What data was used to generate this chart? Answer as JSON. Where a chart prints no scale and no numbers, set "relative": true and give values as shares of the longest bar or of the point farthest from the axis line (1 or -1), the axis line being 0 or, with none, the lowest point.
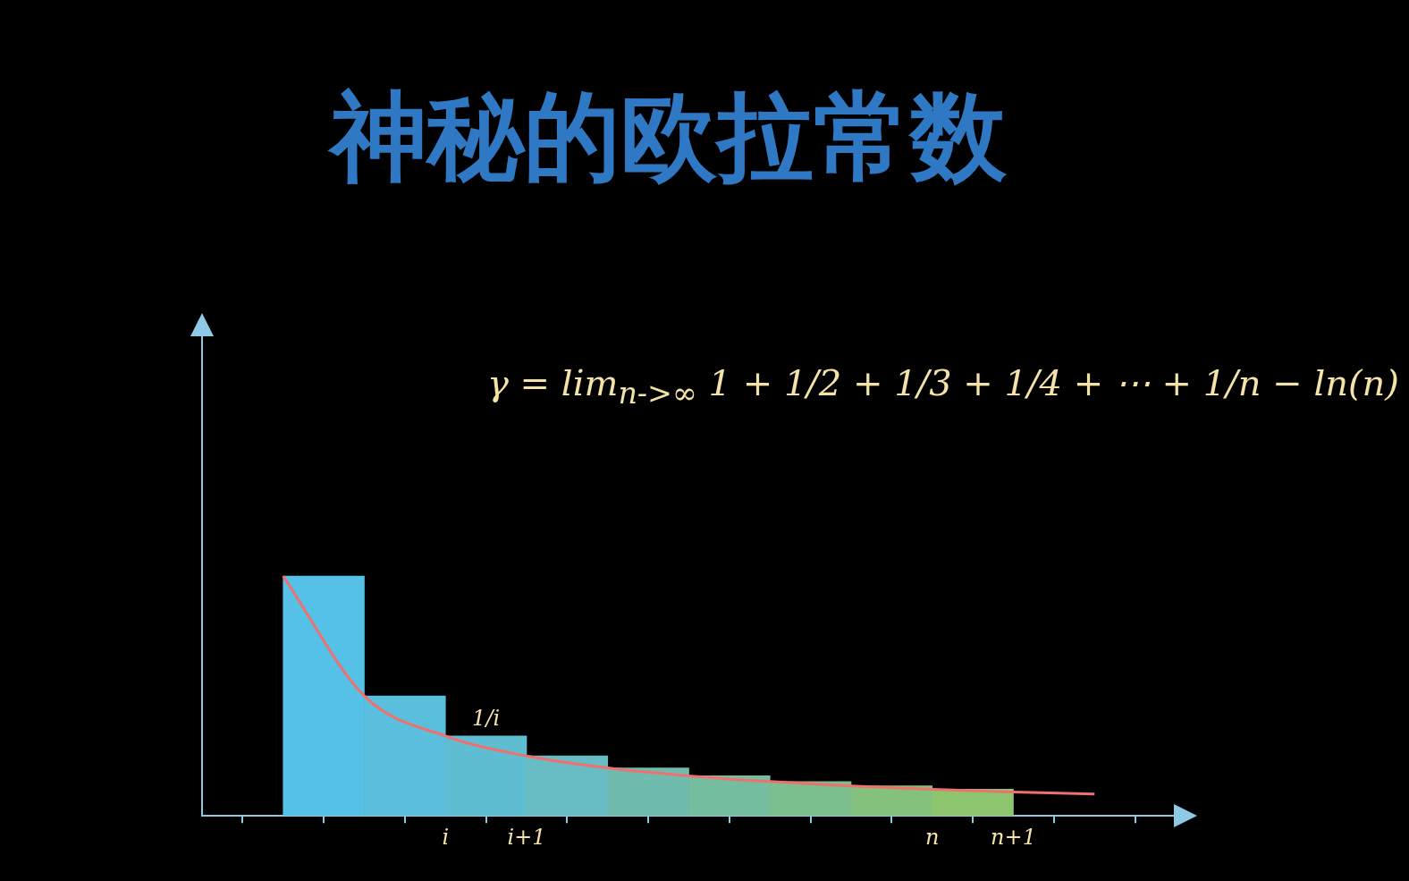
{
  "chart_data": {
    "type": "bar",
    "title": "神秘的欧拉常数",
    "relative": true,
    "legend": false,
    "grid": false,
    "categories": [
      null,
      null,
      null,
      "i",
      "i+1",
      null,
      null,
      null,
      null,
      "n",
      "n+1",
      null
    ],
    "series": [
      {
        "values": [
          null,
          1,
          0.5,
          0.333,
          0.25,
          0.2,
          0.167,
          0.143,
          0.125,
          0.111,
          null,
          null
        ],
        "colors": [
          "#56c1e6",
          "#56c1e6",
          "#5abfdc",
          "#5ebdd0",
          "#68bcc4",
          "#6fbcae",
          "#74bd9f",
          "#7cbf8e",
          "#84c17c",
          "#8dc46e",
          "#8dc46e",
          "#8dc46e"
        ]
      },
      {
        "type": "line",
        "color": "#f07070",
        "values": [
          null,
          1,
          0.5,
          0.333,
          0.25,
          0.2,
          0.167,
          0.143,
          0.125,
          0.111,
          0.1,
          0.091
        ]
      }
    ],
    "annotations": [
      "γ = lim$_{n->∞}$ 1 + 1/2 + 1/3 + 1/4 + ⋯ + 1/n − ln(n)",
      {
        "text": "1/i",
        "x": "i",
        "y": 0.333
      }
    ]
  }
}
